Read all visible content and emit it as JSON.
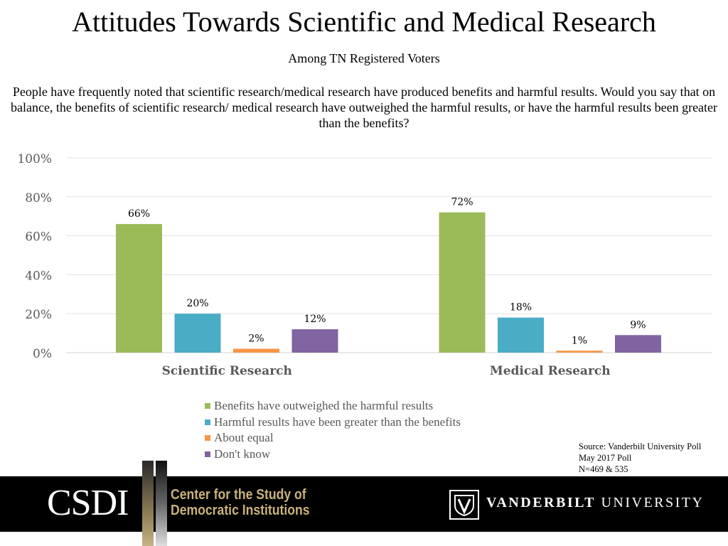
{
  "title": "Attitudes Towards Scientific and Medical Research",
  "subtitle": "Among TN Registered Voters",
  "question": "People have frequently noted that scientific research/medical research have produced benefits and harmful  results. Would you say that on balance, the benefits of scientific research/ medical research have outweighed the harmful results, or have the harmful results been greater than the benefits?",
  "chart_data": {
    "type": "bar",
    "categories": [
      "Scientific Research",
      "Medical Research"
    ],
    "series": [
      {
        "name": "Benefits have outweighed the harmful results",
        "values": [
          66,
          72
        ],
        "labels": [
          "66%",
          "72%"
        ],
        "color": "#9bbb59"
      },
      {
        "name": "Harmful results have been greater than the benefits",
        "values": [
          20,
          18
        ],
        "labels": [
          "20%",
          "18%"
        ],
        "color": "#4bacc6"
      },
      {
        "name": "About equal",
        "values": [
          2,
          1
        ],
        "labels": [
          "2%",
          "1%"
        ],
        "color": "#f79646"
      },
      {
        "name": "Don't know",
        "values": [
          12,
          9
        ],
        "labels": [
          "12%",
          "9%"
        ],
        "color": "#8064a2"
      }
    ],
    "ylim": [
      0,
      100
    ],
    "yticks": [
      "0%",
      "20%",
      "40%",
      "60%",
      "80%",
      "100%"
    ],
    "grid": true,
    "legend_position": "bottom"
  },
  "source": {
    "line1": "Source: Vanderbilt University Poll",
    "line2": "May 2017 Poll",
    "line3": "N=469 & 535"
  },
  "footer": {
    "csdi": "CSDI",
    "center_line1": "Center for the Study of",
    "center_line2": "Democratic Institutions",
    "vu_bold": "VANDERBILT",
    "vu_rest": "UNIVERSITY",
    "shield_icon": "vanderbilt-shield-icon"
  }
}
